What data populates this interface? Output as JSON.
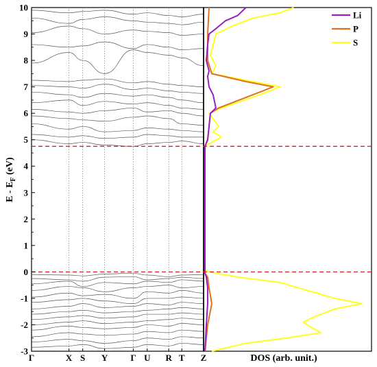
{
  "chart_data": [
    {
      "type": "line",
      "panel": "band-structure",
      "ylabel": "E - E",
      "ylabel_sub": "F",
      "ylabel_unit": " (eV)",
      "ylim": [
        -3,
        10
      ],
      "yticks": [
        -3,
        -2,
        -1,
        0,
        1,
        2,
        3,
        4,
        5,
        6,
        7,
        8,
        9,
        10
      ],
      "kpoint_labels": [
        "Γ",
        "X",
        "S",
        "Y",
        "Γ",
        "U",
        "R",
        "T",
        "Z"
      ],
      "fermi_level": 0,
      "conduction_band_minimum": 4.75,
      "line_color": "#555555",
      "valence_bands": [
        [
          -0.1,
          -0.12,
          -0.15,
          -0.08,
          -0.05,
          -0.12,
          -0.18,
          -0.12,
          -0.1
        ],
        [
          -0.25,
          -0.3,
          -0.35,
          -0.2,
          -0.18,
          -0.3,
          -0.25,
          -0.2,
          -0.25
        ],
        [
          -0.45,
          -0.35,
          -0.55,
          -0.4,
          -0.45,
          -0.35,
          -0.4,
          -0.3,
          -0.35
        ],
        [
          -0.7,
          -0.55,
          -0.6,
          -0.75,
          -0.6,
          -0.55,
          -0.5,
          -0.6,
          -0.55
        ],
        [
          -0.95,
          -0.8,
          -0.9,
          -0.85,
          -1.0,
          -0.75,
          -0.8,
          -0.7,
          -0.8
        ],
        [
          -1.15,
          -1.05,
          -1.0,
          -1.1,
          -1.2,
          -1.0,
          -1.0,
          -0.95,
          -1.0
        ],
        [
          -1.4,
          -1.3,
          -1.2,
          -1.35,
          -1.3,
          -1.2,
          -1.25,
          -1.15,
          -1.2
        ],
        [
          -1.6,
          -1.5,
          -1.45,
          -1.55,
          -1.5,
          -1.45,
          -1.4,
          -1.35,
          -1.4
        ],
        [
          -1.8,
          -1.7,
          -1.65,
          -1.75,
          -1.7,
          -1.6,
          -1.6,
          -1.55,
          -1.6
        ],
        [
          -2.0,
          -1.9,
          -1.85,
          -1.95,
          -1.9,
          -1.85,
          -1.8,
          -1.75,
          -1.8
        ],
        [
          -2.2,
          -2.05,
          -2.1,
          -2.15,
          -2.1,
          -2.0,
          -2.05,
          -1.95,
          -2.0
        ],
        [
          -2.45,
          -2.3,
          -2.35,
          -2.4,
          -2.35,
          -2.25,
          -2.3,
          -2.2,
          -2.25
        ],
        [
          -2.65,
          -2.55,
          -2.6,
          -2.7,
          -2.6,
          -2.5,
          -2.55,
          -2.45,
          -2.5
        ],
        [
          -2.85,
          -2.8,
          -2.75,
          -2.9,
          -2.85,
          -2.75,
          -2.8,
          -2.7,
          -2.75
        ]
      ],
      "conduction_bands": [
        [
          5.0,
          4.85,
          4.9,
          4.8,
          4.75,
          4.85,
          4.9,
          4.95,
          4.85
        ],
        [
          5.2,
          5.1,
          5.15,
          5.05,
          5.1,
          5.2,
          5.15,
          5.1,
          5.1
        ],
        [
          5.6,
          5.4,
          5.5,
          5.3,
          5.35,
          5.45,
          5.4,
          5.35,
          5.3
        ],
        [
          5.9,
          5.8,
          5.75,
          5.7,
          5.85,
          5.9,
          5.8,
          5.6,
          5.55
        ],
        [
          6.15,
          6.05,
          6.0,
          6.1,
          6.2,
          6.05,
          6.1,
          6.0,
          5.9
        ],
        [
          6.4,
          6.5,
          6.3,
          6.45,
          6.35,
          6.4,
          6.3,
          6.2,
          6.15
        ],
        [
          6.8,
          6.7,
          6.6,
          6.75,
          6.65,
          6.7,
          6.6,
          6.5,
          6.4
        ],
        [
          7.05,
          7.0,
          6.95,
          7.1,
          6.9,
          6.95,
          6.85,
          6.8,
          6.75
        ],
        [
          7.25,
          7.2,
          7.25,
          7.3,
          7.15,
          7.2,
          7.1,
          7.05,
          7.0
        ],
        [
          7.9,
          8.3,
          8.0,
          7.5,
          8.4,
          8.3,
          8.2,
          8.1,
          7.8
        ],
        [
          8.6,
          8.5,
          8.55,
          8.7,
          8.45,
          8.6,
          8.5,
          8.4,
          8.45
        ],
        [
          9.05,
          9.3,
          9.2,
          9.0,
          9.15,
          9.1,
          9.05,
          8.95,
          9.0
        ],
        [
          9.6,
          9.4,
          9.55,
          9.65,
          9.5,
          9.45,
          9.4,
          9.35,
          9.45
        ],
        [
          9.9,
          9.8,
          9.85,
          9.9,
          9.75,
          9.8,
          9.7,
          9.65,
          9.75
        ]
      ]
    },
    {
      "type": "line",
      "panel": "dos",
      "xlabel": "DOS (arb. unit.)",
      "ylim": [
        -3,
        10
      ],
      "legend_placement": "top-right",
      "fermi_level": 0,
      "conduction_band_minimum": 4.75,
      "series": [
        {
          "name": "Li",
          "color": "#9b1fc0",
          "energy": [
            -3.0,
            -2.0,
            -1.2,
            -0.6,
            -0.2,
            -0.05,
            4.75,
            5.0,
            6.0,
            6.2,
            6.7,
            7.0,
            7.4,
            7.6,
            8.0,
            8.6,
            9.0,
            9.2,
            9.5,
            9.7,
            10.0
          ],
          "values": [
            0.0,
            0.01,
            0.02,
            0.02,
            0.01,
            0.0,
            0.0,
            0.02,
            0.04,
            0.08,
            0.06,
            0.03,
            0.02,
            0.03,
            0.01,
            0.02,
            0.03,
            0.08,
            0.15,
            0.24,
            0.3
          ]
        },
        {
          "name": "P",
          "color": "#e07020",
          "energy": [
            -3.0,
            -2.0,
            -1.2,
            -0.6,
            -0.2,
            -0.05,
            4.75,
            5.0,
            6.0,
            6.2,
            6.7,
            7.0,
            7.2,
            7.5,
            8.0,
            9.0,
            10.0
          ],
          "values": [
            0.0,
            0.02,
            0.05,
            0.03,
            0.02,
            0.0,
            0.0,
            0.02,
            0.04,
            0.1,
            0.35,
            0.5,
            0.3,
            0.05,
            0.02,
            0.02,
            0.03
          ]
        },
        {
          "name": "S",
          "color": "#ffff20",
          "energy": [
            -3.0,
            -2.7,
            -2.5,
            -2.3,
            -2.1,
            -1.9,
            -1.7,
            -1.4,
            -1.2,
            -1.0,
            -0.7,
            -0.4,
            -0.2,
            -0.05,
            0.05,
            4.75,
            4.9,
            5.1,
            5.3,
            5.5,
            6.0,
            6.2,
            6.7,
            7.0,
            7.2,
            7.5,
            7.8,
            8.2,
            8.6,
            9.0,
            9.3,
            9.6,
            9.8,
            10.0
          ],
          "values": [
            0.05,
            0.3,
            0.6,
            0.85,
            0.78,
            0.72,
            0.8,
            0.95,
            1.15,
            0.95,
            0.75,
            0.55,
            0.25,
            0.08,
            0.0,
            0.0,
            0.05,
            0.12,
            0.06,
            0.1,
            0.03,
            0.12,
            0.4,
            0.55,
            0.35,
            0.05,
            0.08,
            0.04,
            0.06,
            0.08,
            0.2,
            0.35,
            0.55,
            0.65
          ]
        }
      ]
    }
  ]
}
